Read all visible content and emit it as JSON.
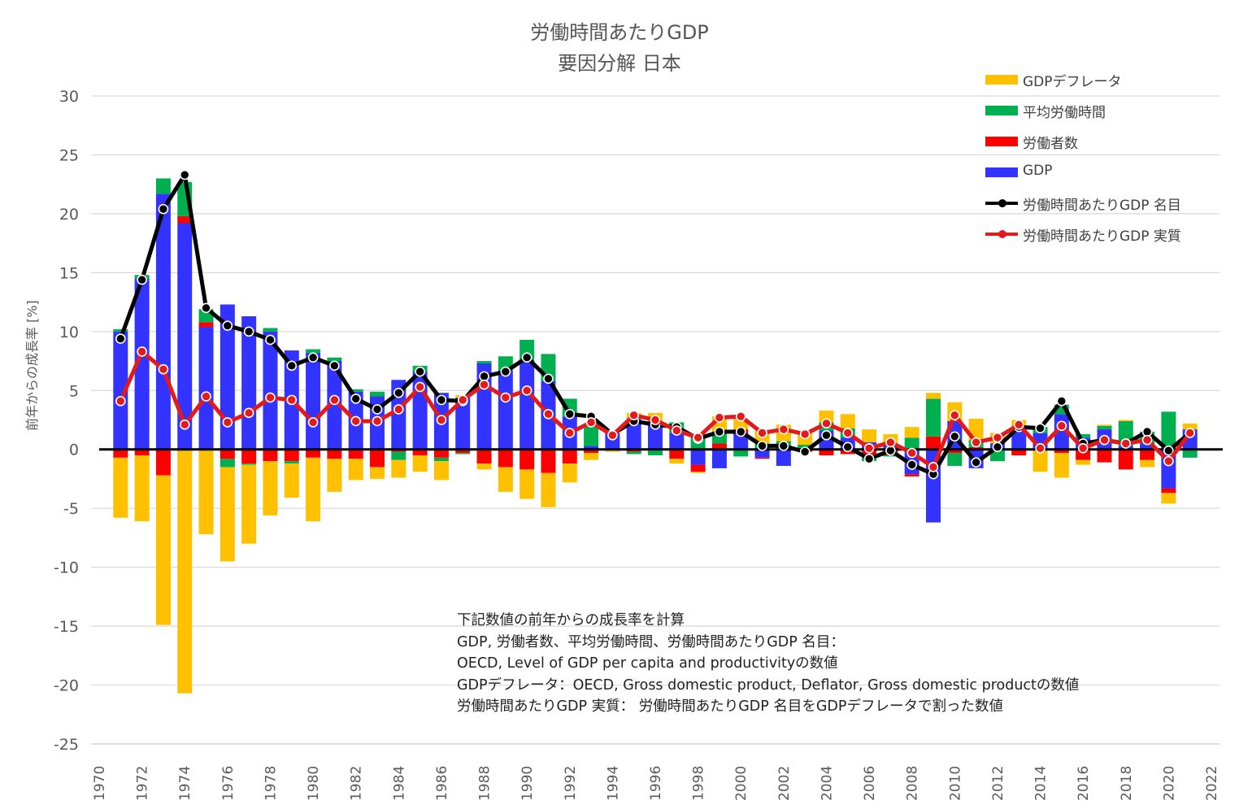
{
  "title": "労働時間あたりGDP",
  "subtitle": "要因分解 日本",
  "note_lines": [
    "下記数値の前年からの成長率を計算",
    "GDP, 労働者数、平均労働時間、労働時間あたりGDP 名目：",
    "OECD, Level of GDP per capita and productivityの数値",
    "GDPデフレータ：OECD, Gross domestic product, Deflator, Gross domestic productの数値",
    "労働時間あたりGDP 実質： 労働時間あたりGDP 名目をGDPデフレータで割った数値"
  ],
  "colors": {
    "deflator": "#ffc000",
    "hours": "#00b050",
    "workers": "#ff0000",
    "gdp": "#3333ff",
    "nominal": "#000000",
    "real": "#e31a1c",
    "grid": "#d9d9d9",
    "zero": "#000000"
  },
  "chart_data": {
    "type": "bar",
    "stacked": true,
    "title": "労働時間あたりGDP",
    "subtitle": "要因分解 日本",
    "ylabel": "前年からの成長率 [%]",
    "xlabel": "",
    "ylim": [
      -25,
      30
    ],
    "yticks": [
      -25,
      -20,
      -15,
      -10,
      -5,
      0,
      5,
      10,
      15,
      20,
      25,
      30
    ],
    "xlim": [
      1970,
      2022
    ],
    "xticks": [
      1970,
      1972,
      1974,
      1976,
      1978,
      1980,
      1982,
      1984,
      1986,
      1988,
      1990,
      1992,
      1994,
      1996,
      1998,
      2000,
      2002,
      2004,
      2006,
      2008,
      2010,
      2012,
      2014,
      2016,
      2018,
      2020,
      2022
    ],
    "grid": "horizontal",
    "legend_position": "top-right",
    "x": [
      1971,
      1972,
      1973,
      1974,
      1975,
      1976,
      1977,
      1978,
      1979,
      1980,
      1981,
      1982,
      1983,
      1984,
      1985,
      1986,
      1987,
      1988,
      1989,
      1990,
      1991,
      1992,
      1993,
      1994,
      1995,
      1996,
      1997,
      1998,
      1999,
      2000,
      2001,
      2002,
      2003,
      2004,
      2005,
      2006,
      2007,
      2008,
      2009,
      2010,
      2011,
      2012,
      2013,
      2014,
      2015,
      2016,
      2017,
      2018,
      2019,
      2020,
      2021
    ],
    "series": [
      {
        "name": "GDPデフレータ",
        "kind": "bar",
        "values": [
          -5.1,
          -5.6,
          -12.7,
          -20.7,
          -7.2,
          -8.0,
          -6.7,
          -4.6,
          -2.9,
          -5.4,
          -2.8,
          -1.8,
          -1.0,
          -1.5,
          -1.4,
          -1.6,
          0.2,
          -0.5,
          -2.1,
          -2.5,
          -2.9,
          -1.6,
          -0.6,
          -0.1,
          0.5,
          0.7,
          -0.4,
          -0.1,
          1.3,
          0.9,
          1.1,
          1.4,
          1.0,
          1.0,
          1.2,
          1.1,
          0.9,
          0.9,
          0.5,
          1.6,
          1.8,
          0.9,
          0.6,
          -1.8,
          -2.1,
          -0.4,
          0.1,
          0.1,
          -0.6,
          -0.9,
          0.5
        ]
      },
      {
        "name": "平均労働時間",
        "kind": "bar",
        "values": [
          0.2,
          0.3,
          1.3,
          2.9,
          1.1,
          -0.7,
          -0.1,
          0.3,
          -0.2,
          0.3,
          0.3,
          0.2,
          0.4,
          -0.7,
          0.5,
          -0.3,
          -0.1,
          0.2,
          1.2,
          1.7,
          2.3,
          1.5,
          1.7,
          -0.1,
          -0.2,
          -0.4,
          0.9,
          1.3,
          1.0,
          -0.6,
          0.5,
          0.6,
          0.4,
          0.7,
          0.8,
          -0.5,
          -0.1,
          1.0,
          3.2,
          -1.1,
          0.6,
          -0.9,
          0.3,
          0.5,
          0.8,
          0.3,
          0.3,
          2.1,
          1.0,
          3.2,
          -0.6
        ]
      },
      {
        "name": "労働者数",
        "kind": "bar",
        "values": [
          -0.7,
          -0.5,
          -2.2,
          0.6,
          0.4,
          -0.8,
          -1.2,
          -1.0,
          -1.0,
          -0.7,
          -0.8,
          -0.8,
          -1.5,
          -0.2,
          -0.5,
          -0.7,
          -0.3,
          -1.2,
          -1.5,
          -1.7,
          -2.0,
          -1.2,
          -0.3,
          0.1,
          -0.2,
          -0.1,
          -0.8,
          -0.6,
          0.5,
          0.3,
          -0.1,
          0.1,
          -0.2,
          -0.5,
          -0.4,
          -0.5,
          -0.5,
          -0.2,
          1.1,
          -0.3,
          0.2,
          -0.1,
          -0.5,
          -0.1,
          -0.3,
          -0.9,
          -1.1,
          -1.7,
          -0.9,
          -0.4,
          -0.1
        ]
      },
      {
        "name": "GDP",
        "kind": "bar",
        "values": [
          10.0,
          14.5,
          21.7,
          19.2,
          10.4,
          12.3,
          11.3,
          10.0,
          8.4,
          8.2,
          7.5,
          4.9,
          4.5,
          5.9,
          6.6,
          4.8,
          4.4,
          7.3,
          6.7,
          7.6,
          5.8,
          2.8,
          0.3,
          1.3,
          2.6,
          2.4,
          1.4,
          -1.3,
          -1.6,
          1.4,
          -0.7,
          -1.4,
          0.0,
          1.6,
          1.0,
          0.6,
          0.4,
          -2.1,
          -6.2,
          2.4,
          -1.6,
          0.5,
          1.6,
          1.4,
          3.0,
          1.0,
          1.7,
          0.3,
          0.5,
          -3.3,
          1.7
        ]
      },
      {
        "name": "労働時間あたりGDP 名目",
        "kind": "line",
        "values": [
          9.4,
          14.4,
          20.4,
          23.3,
          12.0,
          10.5,
          10.0,
          9.3,
          7.1,
          7.8,
          7.1,
          4.3,
          3.4,
          4.8,
          6.6,
          4.2,
          4.1,
          6.2,
          6.6,
          7.8,
          6.0,
          3.0,
          2.8,
          1.3,
          2.4,
          2.1,
          1.9,
          0.9,
          1.5,
          1.5,
          0.3,
          0.3,
          -0.2,
          1.2,
          0.2,
          -0.8,
          -0.1,
          -1.3,
          -2.1,
          1.1,
          -1.1,
          0.2,
          1.9,
          1.8,
          4.1,
          0.5,
          0.8,
          0.5,
          1.5,
          -0.1,
          1.4
        ]
      },
      {
        "name": "労働時間あたりGDP 実質",
        "kind": "line",
        "values": [
          4.1,
          8.3,
          6.8,
          2.1,
          4.5,
          2.3,
          3.1,
          4.4,
          4.2,
          2.3,
          4.2,
          2.4,
          2.4,
          3.4,
          5.3,
          2.5,
          4.2,
          5.5,
          4.4,
          5.0,
          3.0,
          1.4,
          2.3,
          1.2,
          2.9,
          2.5,
          1.6,
          1.0,
          2.7,
          2.8,
          1.4,
          1.7,
          1.3,
          2.2,
          1.4,
          0.1,
          0.6,
          -0.3,
          -1.5,
          2.9,
          0.6,
          1.0,
          2.1,
          0.1,
          2.0,
          0.1,
          0.8,
          0.5,
          0.8,
          -1.0,
          1.4
        ]
      }
    ]
  }
}
